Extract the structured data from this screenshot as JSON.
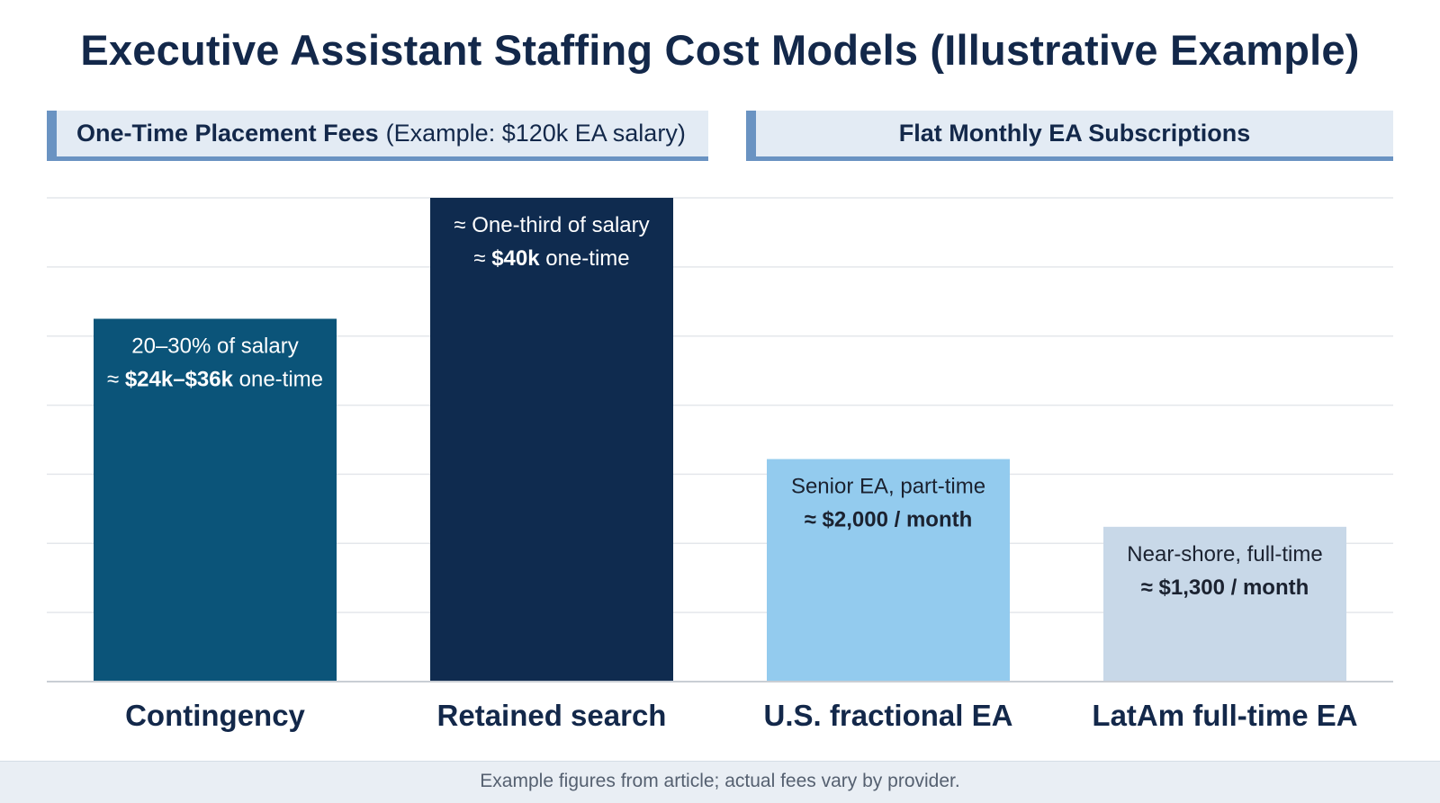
{
  "title": "Executive Assistant Staffing Cost Models (Illustrative Example)",
  "sections": {
    "left": {
      "title": "One-Time Placement Fees",
      "subtitle": "(Example: $120k EA salary)"
    },
    "right": {
      "title": "Flat Monthly EA Subscriptions"
    }
  },
  "footer": "Example figures from article; actual fees vary by provider.",
  "colors": {
    "contingency": "#0b5479",
    "retained": "#0f2b4f",
    "us_fractional": "#93cbee",
    "latam": "#c8d8e8",
    "gridline": "#e4e7eb",
    "axis": "#c9ced4",
    "label_dark": "#13284a",
    "text_light": "#ffffff",
    "text_dark": "#1b2230"
  },
  "chart_data": {
    "type": "bar",
    "title": "Executive Assistant Staffing Cost Models (Illustrative Example)",
    "xlabel": "",
    "ylabel": "",
    "grid": true,
    "categories": [
      "Contingency",
      "Retained search",
      "U.S. fractional EA",
      "LatAm full-time EA"
    ],
    "values": [
      75,
      100,
      46,
      32
    ],
    "ylim": [
      0,
      100
    ],
    "gridline_count": 7,
    "bar_colors": [
      "#0b5479",
      "#0f2b4f",
      "#93cbee",
      "#c8d8e8"
    ],
    "annotations": [
      {
        "line1": "20–30% of salary",
        "line2_prefix": "≈ ",
        "line2_bold": "$24k–$36k",
        "line2_suffix": " one-time",
        "text_color": "light"
      },
      {
        "line1": "≈ One-third of salary",
        "line2_prefix": "≈ ",
        "line2_bold": "$40k",
        "line2_suffix": " one-time",
        "text_color": "light"
      },
      {
        "line1": "Senior EA, part-time",
        "line2_prefix": "",
        "line2_bold": "≈ $2,000 / month",
        "line2_suffix": "",
        "text_color": "dark"
      },
      {
        "line1": "Near-shore, full-time",
        "line2_prefix": "",
        "line2_bold": "≈ $1,300 / month",
        "line2_suffix": "",
        "text_color": "dark"
      }
    ]
  }
}
